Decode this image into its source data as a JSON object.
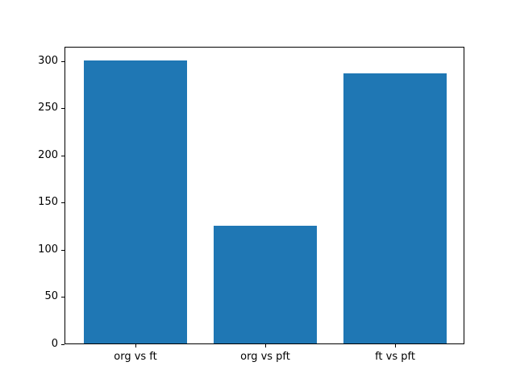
{
  "figure": {
    "background_color": "#ffffff",
    "spine_color": "#000000",
    "tick_color": "#000000",
    "text_color": "#000000"
  },
  "chart_data": {
    "type": "bar",
    "categories": [
      "org vs ft",
      "org vs pft",
      "ft vs pft"
    ],
    "values": [
      300,
      125,
      286
    ],
    "title": "",
    "xlabel": "",
    "ylabel": "",
    "ylim": [
      0,
      315
    ],
    "yticks": [
      0,
      50,
      100,
      150,
      200,
      250,
      300
    ],
    "bar_color": "#1f77b4",
    "bar_width": 0.8,
    "x_margin_fraction": 0.05,
    "grid": false,
    "legend_position": "none"
  }
}
